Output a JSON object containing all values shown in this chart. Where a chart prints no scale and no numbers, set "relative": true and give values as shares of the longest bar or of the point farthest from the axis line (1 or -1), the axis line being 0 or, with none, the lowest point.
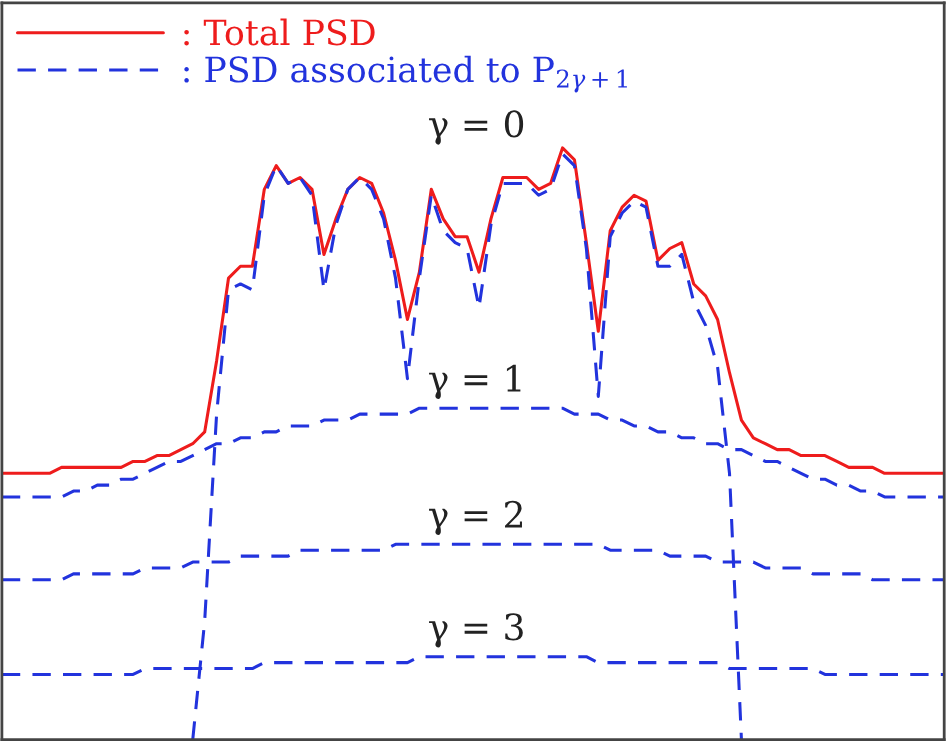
{
  "chart_data": {
    "type": "line",
    "relative": true,
    "legend": "top left",
    "grid": false,
    "categories": [
      null,
      null,
      null,
      null,
      null,
      null,
      null,
      null,
      null,
      null,
      null,
      null,
      null,
      null,
      null,
      null,
      null,
      null,
      null,
      null,
      null,
      null,
      null,
      null,
      null,
      null,
      null,
      null,
      null,
      null,
      null,
      null,
      null,
      null,
      null,
      null,
      null,
      null,
      null,
      null,
      null,
      null,
      null,
      null,
      null,
      null,
      null,
      null,
      null,
      null,
      null,
      null,
      null,
      null,
      null,
      null,
      null,
      null,
      null,
      null,
      null,
      null,
      null,
      null,
      null,
      null,
      null,
      null,
      null,
      null,
      null,
      null,
      null,
      null,
      null,
      null,
      null,
      null,
      null,
      null
    ],
    "series": [
      {
        "name": ": Total PSD",
        "color": "#ee1c1c",
        "line_style": "solid",
        "values": [
          0.45,
          0.45,
          0.45,
          0.45,
          0.45,
          0.46,
          0.46,
          0.46,
          0.46,
          0.46,
          0.46,
          0.47,
          0.47,
          0.48,
          0.48,
          0.49,
          0.5,
          0.52,
          0.64,
          0.78,
          0.8,
          0.8,
          0.93,
          0.97,
          0.94,
          0.95,
          0.93,
          0.82,
          0.88,
          0.93,
          0.95,
          0.94,
          0.89,
          0.81,
          0.71,
          0.79,
          0.93,
          0.88,
          0.85,
          0.85,
          0.79,
          0.88,
          0.95,
          0.95,
          0.95,
          0.93,
          0.94,
          1.0,
          0.98,
          0.84,
          0.69,
          0.86,
          0.9,
          0.92,
          0.91,
          0.81,
          0.83,
          0.84,
          0.77,
          0.75,
          0.71,
          0.62,
          0.54,
          0.51,
          0.5,
          0.49,
          0.49,
          0.48,
          0.48,
          0.48,
          0.47,
          0.46,
          0.46,
          0.46,
          0.45,
          0.45,
          0.45,
          0.45,
          0.45,
          0.45
        ]
      },
      {
        "name": ": PSD associated to P$_{2γ+1}$",
        "color": "#2233dd",
        "line_style": "dashed",
        "values": [
          null,
          null,
          null,
          null,
          null,
          null,
          null,
          null,
          null,
          null,
          null,
          null,
          null,
          null,
          null,
          null,
          0,
          0.2,
          0.55,
          0.76,
          0.77,
          0.76,
          0.92,
          0.97,
          0.94,
          0.95,
          0.92,
          0.76,
          0.87,
          0.93,
          0.95,
          0.93,
          0.88,
          0.78,
          0.61,
          0.78,
          0.92,
          0.86,
          0.84,
          0.83,
          0.73,
          0.87,
          0.94,
          0.94,
          0.94,
          0.92,
          0.93,
          0.99,
          0.97,
          0.83,
          0.58,
          0.85,
          0.89,
          0.91,
          0.9,
          0.8,
          0.8,
          0.82,
          0.74,
          0.7,
          0.63,
          0.45,
          0,
          null,
          null,
          null,
          null,
          null,
          null,
          null,
          null,
          null,
          null,
          null,
          null,
          null,
          null,
          null,
          null,
          null
        ]
      },
      {
        "color": "#2233dd",
        "line_style": "dashed",
        "values": [
          0.41,
          0.41,
          0.41,
          0.41,
          0.41,
          0.41,
          0.42,
          0.42,
          0.43,
          0.43,
          0.44,
          0.44,
          0.45,
          0.46,
          0.47,
          0.47,
          0.48,
          0.49,
          0.5,
          0.5,
          0.51,
          0.51,
          0.52,
          0.52,
          0.53,
          0.53,
          0.53,
          0.54,
          0.54,
          0.54,
          0.55,
          0.55,
          0.55,
          0.55,
          0.55,
          0.56,
          0.56,
          0.56,
          0.56,
          0.56,
          0.56,
          0.56,
          0.56,
          0.56,
          0.56,
          0.56,
          0.56,
          0.56,
          0.55,
          0.55,
          0.55,
          0.54,
          0.54,
          0.53,
          0.53,
          0.52,
          0.52,
          0.51,
          0.51,
          0.5,
          0.5,
          0.49,
          0.49,
          0.48,
          0.47,
          0.47,
          0.46,
          0.45,
          0.44,
          0.44,
          0.43,
          0.43,
          0.42,
          0.42,
          0.41,
          0.41,
          0.41,
          0.41,
          0.41,
          0.41
        ]
      },
      {
        "color": "#2233dd",
        "line_style": "dashed",
        "values": [
          0.27,
          0.27,
          0.27,
          0.27,
          0.27,
          0.27,
          0.28,
          0.28,
          0.28,
          0.28,
          0.28,
          0.28,
          0.29,
          0.29,
          0.29,
          0.29,
          0.3,
          0.3,
          0.3,
          0.3,
          0.31,
          0.31,
          0.31,
          0.31,
          0.31,
          0.32,
          0.32,
          0.32,
          0.32,
          0.32,
          0.32,
          0.32,
          0.32,
          0.33,
          0.33,
          0.33,
          0.33,
          0.33,
          0.33,
          0.33,
          0.33,
          0.33,
          0.33,
          0.33,
          0.33,
          0.33,
          0.33,
          0.33,
          0.33,
          0.33,
          0.33,
          0.32,
          0.32,
          0.32,
          0.32,
          0.32,
          0.31,
          0.31,
          0.31,
          0.31,
          0.3,
          0.3,
          0.3,
          0.3,
          0.29,
          0.29,
          0.29,
          0.29,
          0.28,
          0.28,
          0.28,
          0.28,
          0.28,
          0.27,
          0.27,
          0.27,
          0.27,
          0.27,
          0.27,
          0.27
        ]
      },
      {
        "color": "#2233dd",
        "line_style": "dashed",
        "values": [
          0.11,
          0.11,
          0.11,
          0.11,
          0.11,
          0.11,
          0.11,
          0.11,
          0.11,
          0.11,
          0.11,
          0.11,
          0.12,
          0.12,
          0.12,
          0.12,
          0.12,
          0.12,
          0.12,
          0.12,
          0.12,
          0.12,
          0.13,
          0.13,
          0.13,
          0.13,
          0.13,
          0.13,
          0.13,
          0.13,
          0.13,
          0.13,
          0.13,
          0.13,
          0.13,
          0.14,
          0.14,
          0.14,
          0.14,
          0.14,
          0.14,
          0.14,
          0.14,
          0.14,
          0.14,
          0.14,
          0.14,
          0.14,
          0.14,
          0.14,
          0.13,
          0.13,
          0.13,
          0.13,
          0.13,
          0.13,
          0.13,
          0.13,
          0.13,
          0.13,
          0.13,
          0.12,
          0.12,
          0.12,
          0.12,
          0.12,
          0.12,
          0.12,
          0.12,
          0.11,
          0.11,
          0.11,
          0.11,
          0.11,
          0.11,
          0.11,
          0.11,
          0.11,
          0.11,
          0.11
        ]
      }
    ],
    "annotations": [
      "γ = 0",
      "γ = 1",
      "γ = 2",
      "γ = 3"
    ]
  }
}
